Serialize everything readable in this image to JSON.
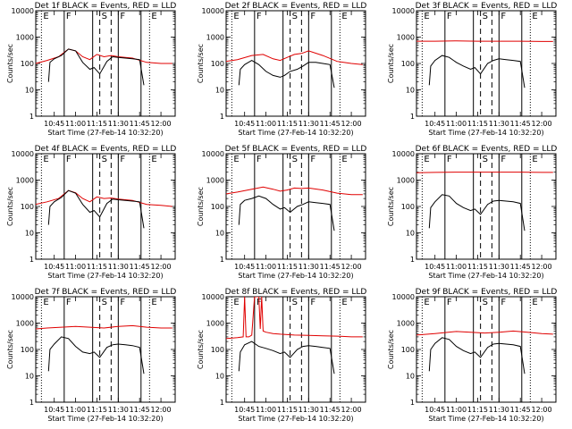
{
  "chart_data": {
    "type": "line",
    "layout": "3x3 grid",
    "ylabel": "Counts/sec",
    "xlabel": "Start Time (27-Feb-14 10:32:20)",
    "x_ticks": [
      "10:45",
      "11:00",
      "11:15",
      "11:30",
      "11:45",
      "12:00"
    ],
    "x_range": [
      "10:32",
      "12:10"
    ],
    "y_scale": "log",
    "y_range": [
      1,
      10000
    ],
    "y_ticks": [
      "1",
      "10",
      "100",
      "1000",
      "10000"
    ],
    "series_colors": {
      "black": "#000000",
      "red": "#e00000"
    },
    "vertical_markers": [
      {
        "time": "10:36",
        "style": "dotted",
        "label": "E"
      },
      {
        "time": "10:52",
        "style": "solid",
        "label": "F"
      },
      {
        "time": "11:12",
        "style": "solid",
        "label": ""
      },
      {
        "time": "11:17",
        "style": "dashed",
        "label": "S"
      },
      {
        "time": "11:25",
        "style": "dashed",
        "label": ""
      },
      {
        "time": "11:30",
        "style": "solid",
        "label": "F"
      },
      {
        "time": "11:46",
        "style": "solid",
        "label": ""
      },
      {
        "time": "11:52",
        "style": "dotted",
        "label": "E"
      }
    ],
    "panels": [
      {
        "title": "Det 1f BLACK = Events, RED = LLD",
        "black": {
          "x": [
            "10:41",
            "10:42",
            "10:45",
            "10:50",
            "10:55",
            "11:00",
            "11:05",
            "11:10",
            "11:13",
            "11:17",
            "11:22",
            "11:26",
            "11:30",
            "11:35",
            "11:40",
            "11:45",
            "11:48"
          ],
          "y": [
            20,
            110,
            150,
            200,
            350,
            300,
            110,
            60,
            70,
            40,
            120,
            180,
            170,
            160,
            150,
            140,
            15
          ]
        },
        "red": {
          "x": [
            "10:32",
            "10:40",
            "10:48",
            "10:55",
            "11:00",
            "11:05",
            "11:10",
            "11:15",
            "11:20",
            "11:25",
            "11:30",
            "11:40",
            "11:50",
            "12:00",
            "12:08"
          ],
          "y": [
            100,
            130,
            180,
            350,
            300,
            180,
            140,
            220,
            180,
            200,
            180,
            160,
            110,
            100,
            100
          ]
        }
      },
      {
        "title": "Det 2f BLACK = Events, RED = LLD",
        "black": {
          "x": [
            "10:41",
            "10:42",
            "10:45",
            "10:50",
            "10:55",
            "11:00",
            "11:05",
            "11:10",
            "11:13",
            "11:17",
            "11:22",
            "11:26",
            "11:30",
            "11:35",
            "11:40",
            "11:45",
            "11:48"
          ],
          "y": [
            15,
            60,
            90,
            130,
            90,
            50,
            35,
            30,
            35,
            50,
            60,
            80,
            110,
            110,
            100,
            90,
            12
          ]
        },
        "red": {
          "x": [
            "10:32",
            "10:40",
            "10:50",
            "10:58",
            "11:05",
            "11:10",
            "11:15",
            "11:20",
            "11:25",
            "11:30",
            "11:40",
            "11:50",
            "12:00",
            "12:08"
          ],
          "y": [
            120,
            140,
            200,
            220,
            150,
            130,
            170,
            220,
            240,
            300,
            200,
            120,
            100,
            90
          ]
        }
      },
      {
        "title": "Det 3f BLACK = Events, RED = LLD",
        "black": {
          "x": [
            "10:41",
            "10:42",
            "10:45",
            "10:50",
            "10:55",
            "11:00",
            "11:05",
            "11:10",
            "11:13",
            "11:17",
            "11:22",
            "11:26",
            "11:30",
            "11:35",
            "11:40",
            "11:45",
            "11:48"
          ],
          "y": [
            15,
            80,
            130,
            200,
            170,
            110,
            80,
            60,
            70,
            40,
            100,
            130,
            150,
            140,
            130,
            120,
            12
          ]
        },
        "red": {
          "x": [
            "10:32",
            "10:45",
            "11:00",
            "11:15",
            "11:30",
            "11:45",
            "12:00",
            "12:08"
          ],
          "y": [
            700,
            700,
            720,
            700,
            700,
            700,
            680,
            680
          ]
        }
      },
      {
        "title": "Det 4f BLACK = Events, RED = LLD",
        "black": {
          "x": [
            "10:41",
            "10:42",
            "10:45",
            "10:50",
            "10:55",
            "11:00",
            "11:05",
            "11:10",
            "11:13",
            "11:17",
            "11:22",
            "11:26",
            "11:30",
            "11:35",
            "11:40",
            "11:45",
            "11:48"
          ],
          "y": [
            20,
            100,
            150,
            220,
            400,
            320,
            120,
            60,
            70,
            40,
            130,
            190,
            180,
            170,
            160,
            150,
            15
          ]
        },
        "red": {
          "x": [
            "10:32",
            "10:40",
            "10:48",
            "10:55",
            "11:00",
            "11:05",
            "11:10",
            "11:15",
            "11:20",
            "11:25",
            "11:30",
            "11:40",
            "11:50",
            "12:00",
            "12:08"
          ],
          "y": [
            120,
            150,
            200,
            400,
            330,
            200,
            150,
            230,
            200,
            210,
            190,
            170,
            120,
            110,
            100
          ]
        }
      },
      {
        "title": "Det 5f BLACK = Events, RED = LLD",
        "black": {
          "x": [
            "10:41",
            "10:42",
            "10:45",
            "10:50",
            "10:55",
            "11:00",
            "11:05",
            "11:10",
            "11:13",
            "11:17",
            "11:22",
            "11:26",
            "11:30",
            "11:35",
            "11:40",
            "11:45",
            "11:48"
          ],
          "y": [
            20,
            120,
            170,
            200,
            250,
            200,
            120,
            80,
            90,
            60,
            100,
            120,
            150,
            140,
            130,
            120,
            12
          ]
        },
        "red": {
          "x": [
            "10:32",
            "10:40",
            "10:50",
            "10:58",
            "11:05",
            "11:10",
            "11:15",
            "11:20",
            "11:25",
            "11:30",
            "11:40",
            "11:50",
            "12:00",
            "12:08"
          ],
          "y": [
            300,
            350,
            450,
            550,
            450,
            380,
            420,
            500,
            480,
            500,
            420,
            320,
            280,
            280
          ]
        }
      },
      {
        "title": "Det 6f BLACK = Events, RED = LLD",
        "black": {
          "x": [
            "10:41",
            "10:42",
            "10:45",
            "10:50",
            "10:55",
            "11:00",
            "11:05",
            "11:10",
            "11:13",
            "11:17",
            "11:22",
            "11:26",
            "11:30",
            "11:35",
            "11:40",
            "11:45",
            "11:48"
          ],
          "y": [
            15,
            90,
            150,
            280,
            250,
            130,
            90,
            70,
            80,
            50,
            120,
            160,
            170,
            160,
            150,
            130,
            12
          ]
        },
        "red": {
          "x": [
            "10:32",
            "10:45",
            "11:00",
            "11:15",
            "11:30",
            "11:45",
            "12:00",
            "12:08"
          ],
          "y": [
            1900,
            1950,
            2000,
            2000,
            2000,
            2000,
            1950,
            1950
          ]
        }
      },
      {
        "title": "Det 7f BLACK = Events, RED = LLD",
        "black": {
          "x": [
            "10:41",
            "10:42",
            "10:45",
            "10:50",
            "10:55",
            "11:00",
            "11:05",
            "11:10",
            "11:13",
            "11:17",
            "11:22",
            "11:26",
            "11:30",
            "11:35",
            "11:40",
            "11:45",
            "11:48"
          ],
          "y": [
            15,
            100,
            160,
            300,
            260,
            130,
            80,
            70,
            80,
            50,
            120,
            150,
            160,
            150,
            140,
            120,
            12
          ]
        },
        "red": {
          "x": [
            "10:32",
            "10:40",
            "10:50",
            "11:00",
            "11:10",
            "11:20",
            "11:30",
            "11:40",
            "11:50",
            "12:00",
            "12:08"
          ],
          "y": [
            600,
            650,
            700,
            750,
            700,
            650,
            750,
            800,
            700,
            650,
            650
          ]
        }
      },
      {
        "title": "Det 8f BLACK = Events, RED = LLD",
        "black": {
          "x": [
            "10:41",
            "10:42",
            "10:45",
            "10:50",
            "10:55",
            "11:00",
            "11:05",
            "11:10",
            "11:13",
            "11:17",
            "11:22",
            "11:26",
            "11:30",
            "11:35",
            "11:40",
            "11:45",
            "11:48"
          ],
          "y": [
            15,
            80,
            150,
            200,
            130,
            110,
            90,
            70,
            80,
            50,
            100,
            130,
            140,
            130,
            120,
            110,
            12
          ]
        },
        "red": {
          "x": [
            "10:32",
            "10:40",
            "10:44",
            "10:45",
            "10:46",
            "10:48",
            "10:50",
            "10:52",
            "10:55",
            "10:56",
            "10:57",
            "10:58",
            "11:00",
            "11:05",
            "11:10",
            "11:20",
            "11:30",
            "11:40",
            "11:50",
            "12:00",
            "12:08"
          ],
          "y": [
            260,
            280,
            300,
            15000,
            300,
            300,
            350,
            15000,
            15000,
            600,
            15000,
            500,
            450,
            400,
            380,
            350,
            340,
            330,
            320,
            300,
            300
          ]
        }
      },
      {
        "title": "Det 9f BLACK = Events, RED = LLD",
        "black": {
          "x": [
            "10:41",
            "10:42",
            "10:45",
            "10:50",
            "10:55",
            "11:00",
            "11:05",
            "11:10",
            "11:13",
            "11:17",
            "11:22",
            "11:26",
            "11:30",
            "11:35",
            "11:40",
            "11:45",
            "11:48"
          ],
          "y": [
            15,
            100,
            170,
            280,
            240,
            130,
            90,
            70,
            80,
            50,
            120,
            160,
            170,
            160,
            150,
            130,
            12
          ]
        },
        "red": {
          "x": [
            "10:32",
            "10:45",
            "11:00",
            "11:10",
            "11:20",
            "11:30",
            "11:40",
            "11:50",
            "12:00",
            "12:08"
          ],
          "y": [
            350,
            400,
            480,
            450,
            420,
            450,
            500,
            450,
            400,
            380
          ]
        }
      }
    ]
  }
}
